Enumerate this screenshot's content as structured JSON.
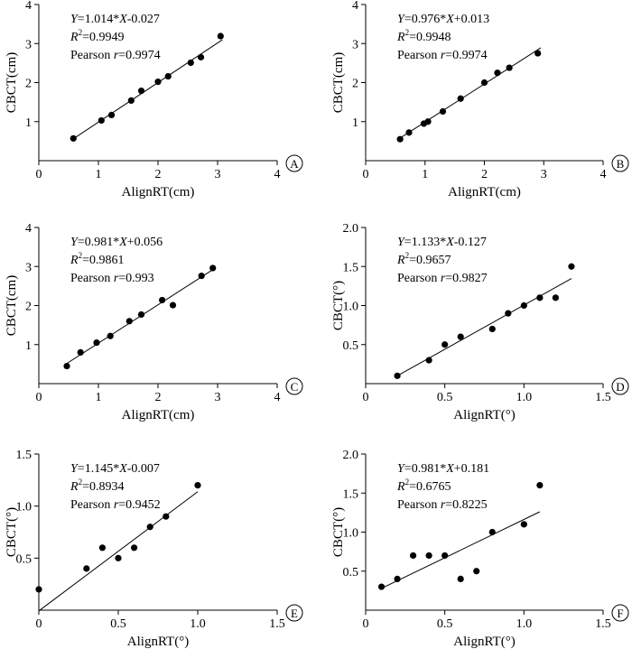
{
  "chart_data": [
    {
      "panel_label": "A",
      "type": "scatter",
      "xlabel": "AlignRT(cm)",
      "ylabel": "CBCT(cm)",
      "xlim": [
        0,
        4
      ],
      "ylim": [
        0,
        4
      ],
      "xticks": [
        "0",
        "1",
        "2",
        "3",
        "4"
      ],
      "yticks": [
        "1",
        "2",
        "3",
        "4"
      ],
      "annotation": {
        "eq_y": "Y",
        "eq_mid": "=1.014*",
        "eq_x": "X",
        "eq_tail": "-0.027",
        "r2_r": "R",
        "r2_sup": "2",
        "r2_val": "=0.9949",
        "pearson_label": "Pearson ",
        "pearson_r": "r",
        "pearson_val": "=0.9974"
      },
      "fit": {
        "slope": 1.014,
        "intercept": -0.027,
        "x_range": [
          0.55,
          3.08
        ]
      },
      "points": [
        [
          0.58,
          0.57
        ],
        [
          1.05,
          1.03
        ],
        [
          1.22,
          1.17
        ],
        [
          1.55,
          1.54
        ],
        [
          1.72,
          1.79
        ],
        [
          2.0,
          2.02
        ],
        [
          2.17,
          2.16
        ],
        [
          2.55,
          2.51
        ],
        [
          2.72,
          2.65
        ],
        [
          3.05,
          3.19
        ]
      ]
    },
    {
      "panel_label": "B",
      "type": "scatter",
      "xlabel": "AlignRT(cm)",
      "ylabel": "CBCT(cm)",
      "xlim": [
        0,
        4
      ],
      "ylim": [
        0,
        4
      ],
      "xticks": [
        "0",
        "1",
        "2",
        "3",
        "4"
      ],
      "yticks": [
        "1",
        "2",
        "3",
        "4"
      ],
      "annotation": {
        "eq_y": "Y",
        "eq_mid": "=0.976*",
        "eq_x": "X",
        "eq_tail": "+0.013",
        "r2_r": "R",
        "r2_sup": "2",
        "r2_val": "=0.9948",
        "pearson_label": "Pearson ",
        "pearson_r": "r",
        "pearson_val": "=0.9974"
      },
      "fit": {
        "slope": 0.976,
        "intercept": 0.013,
        "x_range": [
          0.55,
          2.95
        ]
      },
      "points": [
        [
          0.58,
          0.55
        ],
        [
          0.73,
          0.72
        ],
        [
          0.98,
          0.95
        ],
        [
          1.05,
          1.0
        ],
        [
          1.3,
          1.26
        ],
        [
          1.6,
          1.59
        ],
        [
          2.0,
          2.0
        ],
        [
          2.22,
          2.25
        ],
        [
          2.42,
          2.38
        ],
        [
          2.9,
          2.75
        ]
      ]
    },
    {
      "panel_label": "C",
      "type": "scatter",
      "xlabel": "AlignRT(cm)",
      "ylabel": "CBCT(cm)",
      "xlim": [
        0,
        4
      ],
      "ylim": [
        0,
        4
      ],
      "xticks": [
        "0",
        "1",
        "2",
        "3",
        "4"
      ],
      "yticks": [
        "1",
        "2",
        "3",
        "4"
      ],
      "annotation": {
        "eq_y": "Y",
        "eq_mid": "=0.981*",
        "eq_x": "X",
        "eq_tail": "+0.056",
        "r2_r": "R",
        "r2_sup": "2",
        "r2_val": "=0.9861",
        "pearson_label": "Pearson ",
        "pearson_r": "r",
        "pearson_val": "=0.993"
      },
      "fit": {
        "slope": 0.981,
        "intercept": 0.056,
        "x_range": [
          0.45,
          2.95
        ]
      },
      "points": [
        [
          0.47,
          0.45
        ],
        [
          0.7,
          0.8
        ],
        [
          0.97,
          1.05
        ],
        [
          1.2,
          1.22
        ],
        [
          1.52,
          1.6
        ],
        [
          1.72,
          1.77
        ],
        [
          2.07,
          2.14
        ],
        [
          2.25,
          2.01
        ],
        [
          2.73,
          2.76
        ],
        [
          2.92,
          2.96
        ]
      ]
    },
    {
      "panel_label": "D",
      "type": "scatter",
      "xlabel": "AlignRT(°)",
      "ylabel": "CBCT(°)",
      "xlim": [
        0,
        1.5
      ],
      "ylim": [
        0,
        2.0
      ],
      "xticks": [
        "0",
        "0.5",
        "1.0",
        "1.5"
      ],
      "yticks": [
        "0.5",
        "1.0",
        "1.5",
        "2.0"
      ],
      "annotation": {
        "eq_y": "Y",
        "eq_mid": "=1.133*",
        "eq_x": "X",
        "eq_tail": "-0.127",
        "r2_r": "R",
        "r2_sup": "2",
        "r2_val": "=0.9657",
        "pearson_label": "Pearson ",
        "pearson_r": "r",
        "pearson_val": "=0.9827"
      },
      "fit": {
        "slope": 1.133,
        "intercept": -0.127,
        "x_range": [
          0.19,
          1.3
        ]
      },
      "points": [
        [
          0.2,
          0.1
        ],
        [
          0.4,
          0.3
        ],
        [
          0.5,
          0.5
        ],
        [
          0.6,
          0.6
        ],
        [
          0.8,
          0.7
        ],
        [
          0.9,
          0.9
        ],
        [
          1.0,
          1.0
        ],
        [
          1.1,
          1.1
        ],
        [
          1.2,
          1.1
        ],
        [
          1.3,
          1.5
        ]
      ]
    },
    {
      "panel_label": "E",
      "type": "scatter",
      "xlabel": "AlignRT(°)",
      "ylabel": "CBCT(°)",
      "xlim": [
        0,
        1.5
      ],
      "ylim": [
        0,
        1.5
      ],
      "xticks": [
        "0",
        "0.5",
        "1.0",
        "1.5"
      ],
      "yticks": [
        "0.5",
        "1.0",
        "1.5"
      ],
      "annotation": {
        "eq_y": "Y",
        "eq_mid": "=1.145*",
        "eq_x": "X",
        "eq_tail": "-0.007",
        "r2_r": "R",
        "r2_sup": "2",
        "r2_val": "=0.8934",
        "pearson_label": "Pearson ",
        "pearson_r": "r",
        "pearson_val": "=0.9452"
      },
      "fit": {
        "slope": 1.145,
        "intercept": -0.007,
        "x_range": [
          0.0,
          1.0
        ]
      },
      "points": [
        [
          0.0,
          0.2
        ],
        [
          0.3,
          0.4
        ],
        [
          0.4,
          0.6
        ],
        [
          0.5,
          0.5
        ],
        [
          0.6,
          0.6
        ],
        [
          0.7,
          0.8
        ],
        [
          0.8,
          0.9
        ],
        [
          1.0,
          1.2
        ]
      ]
    },
    {
      "panel_label": "F",
      "type": "scatter",
      "xlabel": "AlignRT(°)",
      "ylabel": "CBCT(°)",
      "xlim": [
        0,
        1.5
      ],
      "ylim": [
        0,
        2.0
      ],
      "xticks": [
        "0",
        "0.5",
        "1.0",
        "1.5"
      ],
      "yticks": [
        "0.5",
        "1.0",
        "1.5",
        "2.0"
      ],
      "annotation": {
        "eq_y": "Y",
        "eq_mid": "=0.981*",
        "eq_x": "X",
        "eq_tail": "+0.181",
        "r2_r": "R",
        "r2_sup": "2",
        "r2_val": "=0.6765",
        "pearson_label": "Pearson ",
        "pearson_r": "r",
        "pearson_val": "=0.8225"
      },
      "fit": {
        "slope": 0.981,
        "intercept": 0.181,
        "x_range": [
          0.1,
          1.1
        ]
      },
      "points": [
        [
          0.1,
          0.3
        ],
        [
          0.2,
          0.4
        ],
        [
          0.3,
          0.7
        ],
        [
          0.4,
          0.7
        ],
        [
          0.5,
          0.7
        ],
        [
          0.6,
          0.4
        ],
        [
          0.7,
          0.5
        ],
        [
          0.8,
          1.0
        ],
        [
          1.0,
          1.1
        ],
        [
          1.1,
          1.6
        ]
      ]
    }
  ]
}
